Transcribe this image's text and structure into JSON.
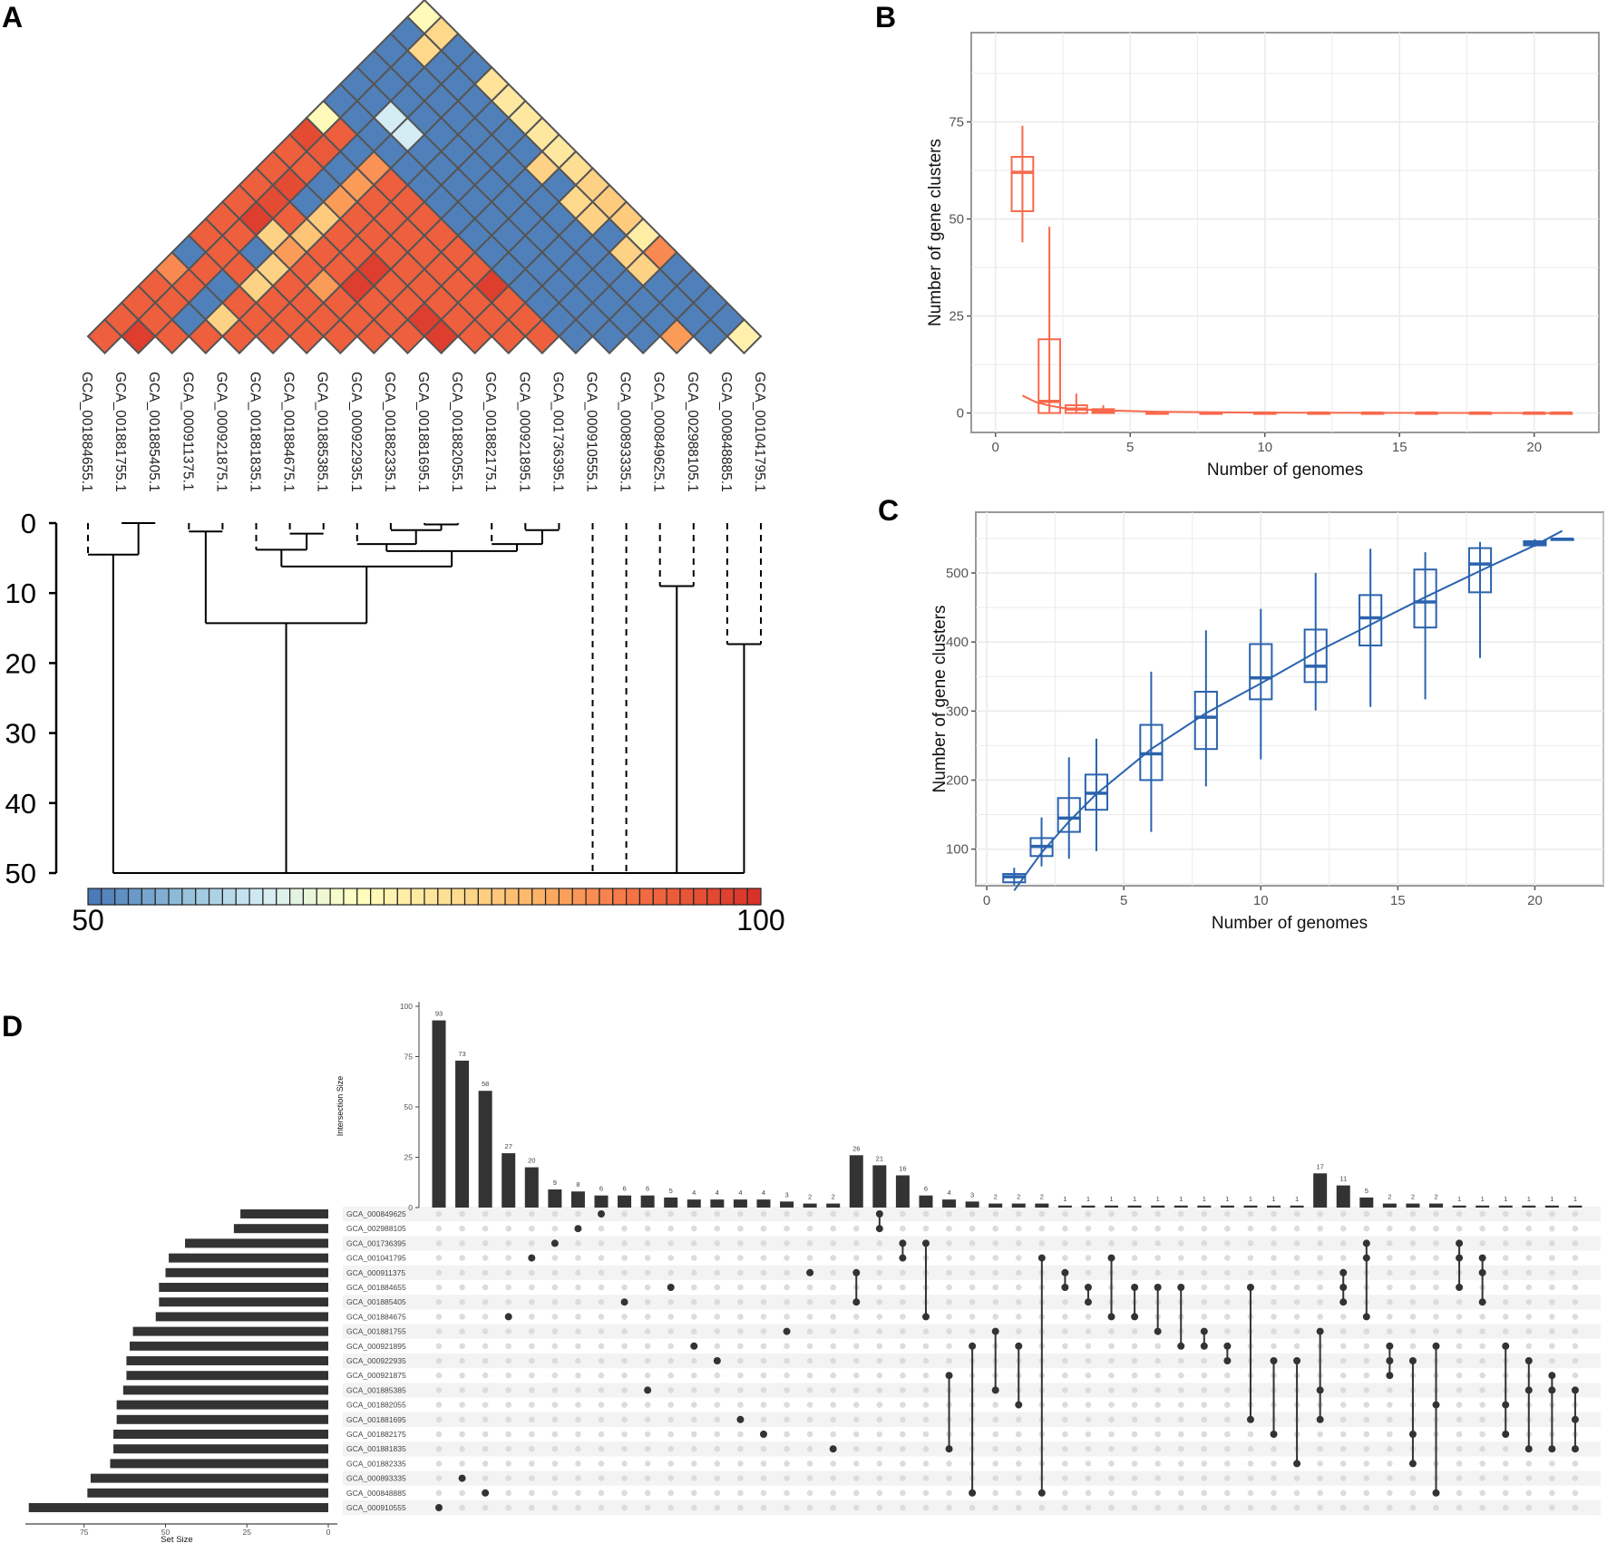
{
  "panel_labels": {
    "a": "A",
    "b": "B",
    "c": "C",
    "d": "D"
  },
  "chart_data": [
    {
      "id": "A",
      "type": "heatmap",
      "genomes": [
        "GCA_001884655.1",
        "GCA_001881755.1",
        "GCA_001885405.1",
        "GCA_000911375.1",
        "GCA_000921875.1",
        "GCA_001881835.1",
        "GCA_001884675.1",
        "GCA_001885385.1",
        "GCA_000922935.1",
        "GCA_001882335.1",
        "GCA_001881695.1",
        "GCA_001882055.1",
        "GCA_001882175.1",
        "GCA_000921895.1",
        "GCA_001736395.1",
        "GCA_000910555.1",
        "GCA_000893335.1",
        "GCA_000849625.1",
        "GCA_002988105.1",
        "GCA_000848885.1",
        "GCA_001041795.1"
      ],
      "scale": {
        "min": 50,
        "max": 100,
        "min_label": "50",
        "max_label": "100",
        "segments": 50,
        "stops": [
          [
            50,
            "#4575b4"
          ],
          [
            57,
            "#91bfdb"
          ],
          [
            63,
            "#d4ecf4"
          ],
          [
            70,
            "#ffffbf"
          ],
          [
            78,
            "#fed98b"
          ],
          [
            84,
            "#fdae61"
          ],
          [
            91,
            "#f46d43"
          ],
          [
            100,
            "#d73027"
          ]
        ]
      },
      "values_by_offset": [
        [
          93,
          98,
          93,
          93,
          93,
          93,
          93,
          93,
          93,
          93,
          98,
          93,
          93,
          93,
          51,
          51,
          51,
          86,
          51,
          73
        ],
        [
          93,
          93,
          51,
          79,
          93,
          93,
          93,
          93,
          93,
          98,
          93,
          93,
          93,
          51,
          51,
          51,
          51,
          51,
          51
        ],
        [
          93,
          93,
          51,
          93,
          93,
          93,
          93,
          93,
          93,
          93,
          93,
          93,
          51,
          51,
          51,
          51,
          51,
          51
        ],
        [
          93,
          93,
          51,
          79,
          93,
          86,
          98,
          93,
          93,
          93,
          98,
          51,
          51,
          51,
          51,
          51,
          51
        ],
        [
          88,
          93,
          93,
          79,
          93,
          93,
          98,
          93,
          93,
          93,
          51,
          51,
          51,
          51,
          79,
          51
        ],
        [
          51,
          93,
          51,
          86,
          93,
          93,
          93,
          93,
          93,
          51,
          51,
          51,
          51,
          79,
          88
        ],
        [
          93,
          93,
          79,
          81,
          93,
          93,
          93,
          93,
          51,
          51,
          51,
          51,
          51,
          74
        ],
        [
          93,
          98,
          93,
          80,
          93,
          93,
          93,
          51,
          51,
          51,
          51,
          79,
          80
        ],
        [
          93,
          96,
          51,
          86,
          93,
          93,
          51,
          51,
          51,
          51,
          78,
          80
        ],
        [
          93,
          96,
          51,
          86,
          93,
          51,
          51,
          51,
          51,
          51,
          79
        ],
        [
          93,
          93,
          51,
          87,
          51,
          51,
          51,
          51,
          79,
          77
        ],
        [
          93,
          94,
          51,
          51,
          51,
          51,
          51,
          51,
          75
        ],
        [
          96,
          93,
          51,
          63,
          51,
          51,
          51,
          75
        ],
        [
          71,
          51,
          63,
          51,
          51,
          51,
          75
        ],
        [
          51,
          51,
          51,
          51,
          51,
          75
        ],
        [
          51,
          51,
          51,
          51,
          76
        ],
        [
          51,
          51,
          51,
          51
        ],
        [
          51,
          78,
          51
        ],
        [
          51,
          78
        ],
        [
          71
        ]
      ],
      "dendrogram": {
        "ylim": [
          0,
          50
        ],
        "yticks": [
          "0",
          "10",
          "20",
          "30",
          "40",
          "50"
        ],
        "merges": [
          [
            1,
            2,
            0
          ],
          [
            0,
            21,
            4.5
          ],
          [
            3,
            4,
            1.2
          ],
          [
            6,
            7,
            1.5
          ],
          [
            5,
            24,
            3.8
          ],
          [
            10,
            11,
            0.2
          ],
          [
            9,
            26,
            1.0
          ],
          [
            8,
            27,
            3.0
          ],
          [
            13,
            14,
            1.0
          ],
          [
            12,
            29,
            3.0
          ],
          [
            28,
            30,
            4.0
          ],
          [
            25,
            31,
            6.2
          ],
          [
            23,
            32,
            14.3
          ],
          [
            17,
            18,
            9.0
          ],
          [
            19,
            20,
            17.3
          ]
        ],
        "root_height": 50,
        "root_children": [
          22,
          33,
          15,
          16,
          34,
          35
        ]
      }
    },
    {
      "id": "B",
      "type": "box",
      "color": "#f8694c",
      "xlabel": "Number of genomes",
      "ylabel": "Number of gene clusters",
      "xlim": [
        -0.9,
        22.4
      ],
      "ylim": [
        -5,
        98
      ],
      "xticks": [
        "0",
        "5",
        "10",
        "15",
        "20"
      ],
      "yticks": [
        "0",
        "25",
        "50",
        "75"
      ],
      "boxes": [
        {
          "x": 1,
          "min": 44,
          "q1": 52,
          "median": 62,
          "q3": 66,
          "max": 74
        },
        {
          "x": 2,
          "min": 0,
          "q1": 0,
          "median": 3,
          "q3": 19,
          "max": 48
        },
        {
          "x": 3,
          "min": 0,
          "q1": 0,
          "median": 1,
          "q3": 2,
          "max": 5
        },
        {
          "x": 4,
          "min": 0,
          "q1": 0,
          "median": 0.5,
          "q3": 1,
          "max": 2
        },
        {
          "x": 6,
          "min": 0,
          "q1": 0,
          "median": 0,
          "q3": 0,
          "max": 0
        },
        {
          "x": 8,
          "min": 0,
          "q1": 0,
          "median": 0,
          "q3": 0,
          "max": 0
        },
        {
          "x": 10,
          "min": 0,
          "q1": 0,
          "median": 0,
          "q3": 0,
          "max": 0
        },
        {
          "x": 12,
          "min": 0,
          "q1": 0,
          "median": 0,
          "q3": 0,
          "max": 0
        },
        {
          "x": 14,
          "min": 0,
          "q1": 0,
          "median": 0,
          "q3": 0,
          "max": 0
        },
        {
          "x": 16,
          "min": 0,
          "q1": 0,
          "median": 0,
          "q3": 0,
          "max": 0
        },
        {
          "x": 18,
          "min": 0,
          "q1": 0,
          "median": 0,
          "q3": 0,
          "max": 0
        },
        {
          "x": 20,
          "min": 0,
          "q1": 0,
          "median": 0,
          "q3": 0,
          "max": 0
        },
        {
          "x": 21,
          "min": 0,
          "q1": 0,
          "median": 0,
          "q3": 0,
          "max": 0
        }
      ],
      "fit": {
        "x": [
          1,
          1.5,
          2,
          2.5,
          3,
          4,
          6,
          8,
          10,
          14,
          18,
          21.4
        ],
        "y": [
          4.5,
          2.8,
          1.9,
          1.3,
          1.0,
          0.7,
          0.35,
          0.2,
          0.1,
          0.05,
          0.02,
          0
        ]
      }
    },
    {
      "id": "C",
      "type": "box",
      "color": "#2a63ad",
      "xlabel": "Number of genomes",
      "ylabel": "Number of gene clusters",
      "xlim": [
        -0.4,
        22.5
      ],
      "ylim": [
        47,
        588
      ],
      "xticks": [
        "0",
        "5",
        "10",
        "15",
        "20"
      ],
      "yticks": [
        "100",
        "200",
        "300",
        "400",
        "500"
      ],
      "boxes": [
        {
          "x": 1,
          "min": 48,
          "q1": 52,
          "median": 60,
          "q3": 64,
          "max": 73
        },
        {
          "x": 2,
          "min": 75,
          "q1": 90,
          "median": 104,
          "q3": 116,
          "max": 146
        },
        {
          "x": 3,
          "min": 86,
          "q1": 125,
          "median": 145,
          "q3": 174,
          "max": 233
        },
        {
          "x": 4,
          "min": 97,
          "q1": 157,
          "median": 181,
          "q3": 208,
          "max": 260
        },
        {
          "x": 6,
          "min": 125,
          "q1": 200,
          "median": 238,
          "q3": 280,
          "max": 357
        },
        {
          "x": 8,
          "min": 191,
          "q1": 245,
          "median": 291,
          "q3": 328,
          "max": 417
        },
        {
          "x": 10,
          "min": 230,
          "q1": 317,
          "median": 348,
          "q3": 397,
          "max": 448
        },
        {
          "x": 12,
          "min": 301,
          "q1": 342,
          "median": 365,
          "q3": 418,
          "max": 500
        },
        {
          "x": 14,
          "min": 306,
          "q1": 395,
          "median": 435,
          "q3": 468,
          "max": 535
        },
        {
          "x": 16,
          "min": 317,
          "q1": 421,
          "median": 458,
          "q3": 505,
          "max": 530
        },
        {
          "x": 18,
          "min": 377,
          "q1": 472,
          "median": 513,
          "q3": 536,
          "max": 545
        },
        {
          "x": 20,
          "min": 538,
          "q1": 540,
          "median": 543,
          "q3": 546,
          "max": 549
        },
        {
          "x": 21,
          "min": 549,
          "q1": 549,
          "median": 549,
          "q3": 549,
          "max": 549
        }
      ],
      "fit": {
        "x": [
          1,
          2,
          3,
          4,
          6,
          8,
          10,
          12,
          14,
          16,
          18,
          20,
          21
        ],
        "y": [
          40,
          95,
          140,
          180,
          245,
          297,
          340,
          385,
          425,
          465,
          503,
          540,
          561
        ]
      }
    },
    {
      "id": "D",
      "type": "upset",
      "ylabel": "Intersection Size",
      "xlabel": "Set Size",
      "yticks": [
        "0",
        "25",
        "50",
        "75",
        "100"
      ],
      "xticks": [
        "75",
        "50",
        "25",
        "0"
      ],
      "sets": [
        "GCA_000849625",
        "GCA_002988105",
        "GCA_001736395",
        "GCA_001041795",
        "GCA_000911375",
        "GCA_001884655",
        "GCA_001885405",
        "GCA_001884675",
        "GCA_001881755",
        "GCA_000921895",
        "GCA_000922935",
        "GCA_000921875",
        "GCA_001885385",
        "GCA_001882055",
        "GCA_001881695",
        "GCA_001882175",
        "GCA_001881835",
        "GCA_001882335",
        "GCA_000893335",
        "GCA_000848885",
        "GCA_000910555"
      ],
      "set_sizes": [
        27,
        29,
        44,
        49,
        50,
        52,
        52,
        53,
        60,
        61,
        62,
        62,
        63,
        65,
        65,
        66,
        66,
        67,
        73,
        74,
        92
      ],
      "intersection_sizes": [
        93,
        73,
        58,
        27,
        20,
        9,
        8,
        6,
        6,
        6,
        5,
        4,
        4,
        4,
        4,
        3,
        2,
        2,
        26,
        21,
        16,
        6,
        4,
        3,
        2,
        2,
        2,
        1,
        1,
        1,
        1,
        1,
        1,
        1,
        1,
        1,
        1,
        1,
        17,
        11,
        5,
        2,
        2,
        2,
        1,
        1,
        1,
        1,
        1,
        1
      ],
      "intersections": [
        [
          20
        ],
        [
          18
        ],
        [
          19
        ],
        [
          7
        ],
        [
          3
        ],
        [
          2
        ],
        [
          1
        ],
        [
          0
        ],
        [
          6
        ],
        [
          12
        ],
        [
          5
        ],
        [
          9
        ],
        [
          10
        ],
        [
          14
        ],
        [
          15
        ],
        [
          8
        ],
        [
          4
        ],
        [
          16
        ],
        [
          4,
          6
        ],
        [
          0,
          1
        ],
        [
          2,
          3
        ],
        [
          2,
          7
        ],
        [
          11,
          16
        ],
        [
          9,
          19
        ],
        [
          8,
          12
        ],
        [
          9,
          13
        ],
        [
          3,
          19
        ],
        [
          4,
          5
        ],
        [
          5,
          6
        ],
        [
          3,
          7
        ],
        [
          5,
          7
        ],
        [
          5,
          8
        ],
        [
          5,
          9
        ],
        [
          8,
          9
        ],
        [
          9,
          10
        ],
        [
          5,
          14
        ],
        [
          10,
          15
        ],
        [
          10,
          17
        ],
        [
          8,
          12,
          14
        ],
        [
          4,
          5,
          6
        ],
        [
          2,
          3,
          7
        ],
        [
          9,
          10,
          11
        ],
        [
          10,
          15,
          17
        ],
        [
          9,
          13,
          19
        ],
        [
          2,
          3,
          5
        ],
        [
          3,
          4,
          6
        ],
        [
          9,
          13,
          15
        ],
        [
          10,
          12,
          16
        ],
        [
          11,
          12,
          16
        ],
        [
          12,
          14,
          16
        ]
      ]
    }
  ]
}
